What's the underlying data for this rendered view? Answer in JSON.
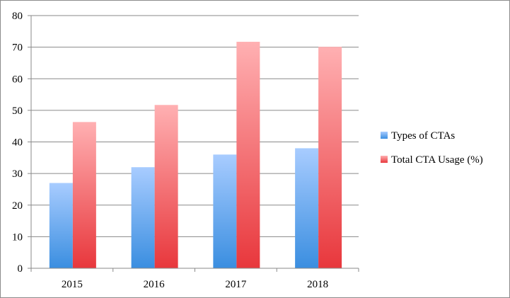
{
  "chart_data": {
    "type": "bar",
    "categories": [
      "2015",
      "2016",
      "2017",
      "2018"
    ],
    "series": [
      {
        "name": "Types of CTAs",
        "values": [
          27,
          32,
          36,
          38
        ],
        "color_top": "#a8ccff",
        "color_bottom": "#3a8ee0"
      },
      {
        "name": "Total CTA Usage (%)",
        "values": [
          46.3,
          51.7,
          71.7,
          70.1
        ],
        "color_top": "#ffb0b2",
        "color_bottom": "#e8373c"
      }
    ],
    "ylim": [
      0,
      80
    ],
    "yticks": [
      "0",
      "10",
      "20",
      "30",
      "40",
      "50",
      "60",
      "70",
      "80"
    ],
    "grid": true,
    "legend": "right",
    "title": "",
    "xlabel": "",
    "ylabel": ""
  }
}
